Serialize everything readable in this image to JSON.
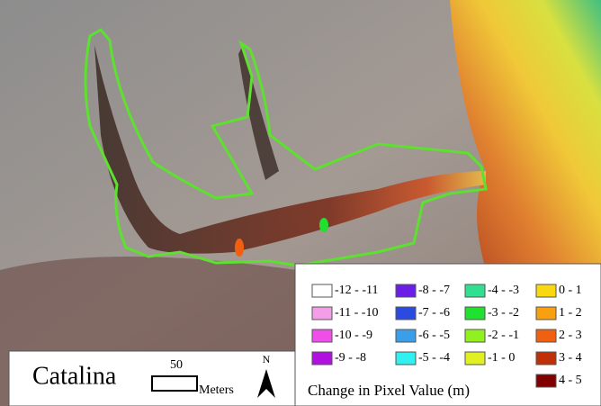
{
  "map": {
    "title": "Catalina",
    "scale_bar": {
      "value": "50",
      "unit": "Meters"
    },
    "north_label": "N",
    "legend": {
      "title": "Change in Pixel Value (m)",
      "items": [
        {
          "label": "-12 - -11",
          "color": "#ffffff"
        },
        {
          "label": "-11 - -10",
          "color": "#f49ee8"
        },
        {
          "label": "-10 - -9",
          "color": "#f04ee8"
        },
        {
          "label": "-9 - -8",
          "color": "#b010e0"
        },
        {
          "label": "-8 - -7",
          "color": "#6a1ee8"
        },
        {
          "label": "-7 - -6",
          "color": "#2a4ae0"
        },
        {
          "label": "-6 - -5",
          "color": "#3a9ee8"
        },
        {
          "label": "-5 - -4",
          "color": "#30f0f0"
        },
        {
          "label": "-4 - -3",
          "color": "#30e090"
        },
        {
          "label": "-3 - -2",
          "color": "#20e030"
        },
        {
          "label": "-2 - -1",
          "color": "#90f020"
        },
        {
          "label": "-1 - 0",
          "color": "#e0f020"
        },
        {
          "label": "0 - 1",
          "color": "#f8d810"
        },
        {
          "label": "1 - 2",
          "color": "#f8a010"
        },
        {
          "label": "2 - 3",
          "color": "#f06010"
        },
        {
          "label": "3 - 4",
          "color": "#c03008"
        },
        {
          "label": "4 - 5",
          "color": "#800000"
        }
      ]
    }
  }
}
